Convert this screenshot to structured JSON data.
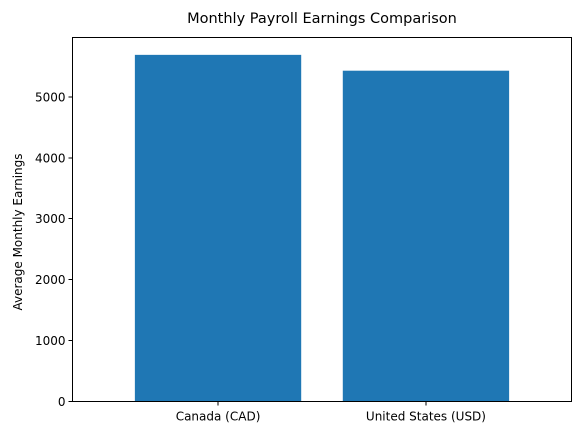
{
  "chart_data": {
    "type": "bar",
    "title": "Monthly Payroll Earnings Comparison",
    "xlabel": "",
    "ylabel": "Average Monthly Earnings",
    "categories": [
      "Canada (CAD)",
      "United States (USD)"
    ],
    "values": [
      5690,
      5430
    ],
    "ylim": [
      0,
      5975
    ],
    "yticks": [
      0,
      1000,
      2000,
      3000,
      4000,
      5000
    ],
    "grid": false,
    "bar_color": "#1f77b4"
  }
}
